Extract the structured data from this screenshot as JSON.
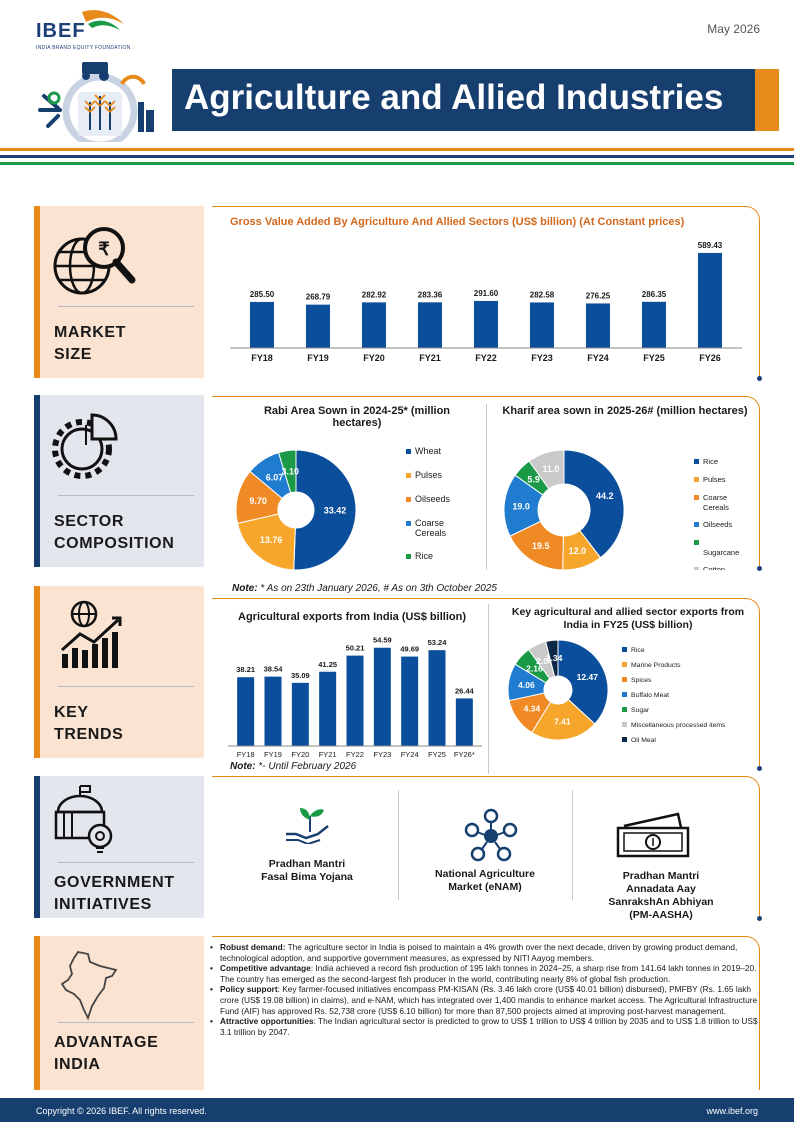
{
  "header": {
    "logo_text": "IBEF",
    "logo_subtitle": "INDIA BRAND EQUITY FOUNDATION",
    "date": "May 2026",
    "title": "Agriculture and Allied Industries"
  },
  "colors": {
    "navy": "#163e6f",
    "bar_blue": "#0b4f9c",
    "orange": "#e88a1a",
    "green": "#1a9a47",
    "peach": "#fbe3d2",
    "slate": "#e3e6ec"
  },
  "sections": {
    "market_size": {
      "label_line1": "MARKET",
      "label_line2": "SIZE",
      "icon": "globe-rupee-magnifier-icon"
    },
    "sector_composition": {
      "label_line1": "SECTOR",
      "label_line2": "COMPOSITION",
      "icon": "gear-pie-icon"
    },
    "key_trends": {
      "label_line1": "KEY",
      "label_line2": "TRENDS",
      "icon": "globe-growth-chart-icon"
    },
    "government_initiatives": {
      "label_line1": "GOVERNMENT",
      "label_line2": "INITIATIVES",
      "icon": "government-building-icon"
    },
    "advantage_india": {
      "label_line1": "ADVANTAGE",
      "label_line2": "INDIA",
      "icon": "india-map-icon"
    }
  },
  "chart_data": [
    {
      "type": "bar",
      "title": "Gross Value Added By Agriculture And Allied Sectors (US$ billion) (At Constant prices)",
      "categories": [
        "FY18",
        "FY19",
        "FY20",
        "FY21",
        "FY22",
        "FY23",
        "FY24",
        "FY25",
        "FY26"
      ],
      "values": [
        285.5,
        268.79,
        282.92,
        283.36,
        291.6,
        282.58,
        276.25,
        286.35,
        589.43
      ],
      "value_labels": [
        "285.50",
        "268.79",
        "282.92",
        "283.36",
        "291.60",
        "282.58",
        "276.25",
        "286.35",
        "589.43"
      ],
      "ylim": [
        0,
        620
      ]
    },
    {
      "type": "pie",
      "title": "Rabi Area Sown in 2024-25* (million hectares)",
      "labels": [
        "Wheat",
        "Pulses",
        "Oilseeds",
        "Coarse Cereals",
        "Rice"
      ],
      "values": [
        33.42,
        13.76,
        9.7,
        6.07,
        3.1
      ],
      "value_labels": [
        "33.42",
        "13.76",
        "9.70",
        "6.07",
        "3.10"
      ],
      "colors": [
        "#0b4f9c",
        "#f7a62c",
        "#f08a24",
        "#1f7ccf",
        "#1a9a47"
      ]
    },
    {
      "type": "pie",
      "title": "Kharif area sown in 2025-26# (million hectares)",
      "labels": [
        "Rice",
        "Pulses",
        "Coarse Cereals",
        "Oilseeds",
        "Sugarcane",
        "Cotton"
      ],
      "values": [
        44.2,
        12.0,
        19.5,
        19.0,
        5.9,
        11.0
      ],
      "value_labels": [
        "44.2",
        "12.0",
        "19.5",
        "19.0",
        "5.9",
        "11.0"
      ],
      "colors": [
        "#0b4f9c",
        "#f7a62c",
        "#f08a24",
        "#1f7ccf",
        "#1a9a47",
        "#c9c9c9"
      ]
    },
    {
      "type": "bar",
      "title": "Agricultural exports from India (US$ billion)",
      "categories": [
        "FY18",
        "FY19",
        "FY20",
        "FY21",
        "FY22",
        "FY23",
        "FY24",
        "FY25",
        "FY26*"
      ],
      "values": [
        38.21,
        38.54,
        35.09,
        41.25,
        50.21,
        54.59,
        49.69,
        53.24,
        26.44
      ],
      "value_labels": [
        "38.21",
        "38.54",
        "35.09",
        "41.25",
        "50.21",
        "54.59",
        "49.69",
        "53.24",
        "26.44"
      ],
      "ylim": [
        0,
        60
      ]
    },
    {
      "type": "pie",
      "title": "Key agricultural and allied sector exports from India in FY25 (US$ billion)",
      "labels": [
        "Rice",
        "Marine Products",
        "Spices",
        "Buffalo Meat",
        "Sugar",
        "Miscellaneous processed items",
        "Oil Meal"
      ],
      "values": [
        12.47,
        7.41,
        4.34,
        4.06,
        2.16,
        2.04,
        1.34
      ],
      "value_labels": [
        "12.47",
        "7.41",
        "4.34",
        "4.06",
        "2.16",
        "2.04",
        "1.34"
      ],
      "colors": [
        "#0b4f9c",
        "#f7a62c",
        "#f08a24",
        "#1f7ccf",
        "#1a9a47",
        "#c9c9c9",
        "#0d2747"
      ]
    }
  ],
  "notes": {
    "composition_prefix": "Note:",
    "composition_text": " * As on 23th January 2026, # As on 3th October 2025",
    "trends_prefix": "Note:",
    "trends_text": " *- Until February 2026"
  },
  "initiatives": [
    {
      "name_line1": "Pradhan Mantri",
      "name_line2": "Fasal Bima Yojana",
      "name_line3": "",
      "name_line4": "",
      "icon": "hand-plant-icon"
    },
    {
      "name_line1": "National Agriculture",
      "name_line2": "Market (eNAM)",
      "name_line3": "",
      "name_line4": "",
      "icon": "network-nodes-icon"
    },
    {
      "name_line1": "Pradhan Mantri",
      "name_line2": "Annadata Aay",
      "name_line3": "SanrakshAn Abhiyan",
      "name_line4": "(PM-AASHA)",
      "icon": "currency-notes-icon"
    }
  ],
  "advantages": [
    {
      "heading": "Robust demand:",
      "text": " The agriculture sector in India is poised to maintain a 4% growth over the next decade, driven by growing product demand, technological adoption, and supportive government measures, as expressed by NITI Aayog members."
    },
    {
      "heading": "Competitive advantage",
      "text": ": India achieved a record fish production of 195 lakh tonnes in 2024–25, a sharp rise from 141.64 lakh tonnes in 2019–20. The country has emerged as the second-largest fish producer in the world, contributing nearly 8% of global fish production."
    },
    {
      "heading": "Policy support",
      "text": ": Key farmer-focused initiatives encompass PM-KISAN (Rs. 3.46 lakh crore (US$ 40.01 billion) disbursed), PMFBY (Rs. 1.65 lakh crore (US$ 19.08 billion) in claims), and e-NAM, which has integrated over 1,400 mandis to enhance market access. The Agricultural Infrastructure Fund (AIF) has approved Rs. 52,738 crore (US$ 6.10 billion) for more than 87,500 projects aimed at improving post-harvest management."
    },
    {
      "heading": "Attractive opportunities",
      "text": ": The Indian agricultural sector is predicted to grow to US$ 1 trillion to US$ 4 trillion by 2035 and to US$ 1.8 trillion to US$ 3.1 trillion by 2047."
    }
  ],
  "footer": {
    "copyright": "Copyright © 2026 IBEF. All rights reserved.",
    "website": "www.ibef.org"
  }
}
